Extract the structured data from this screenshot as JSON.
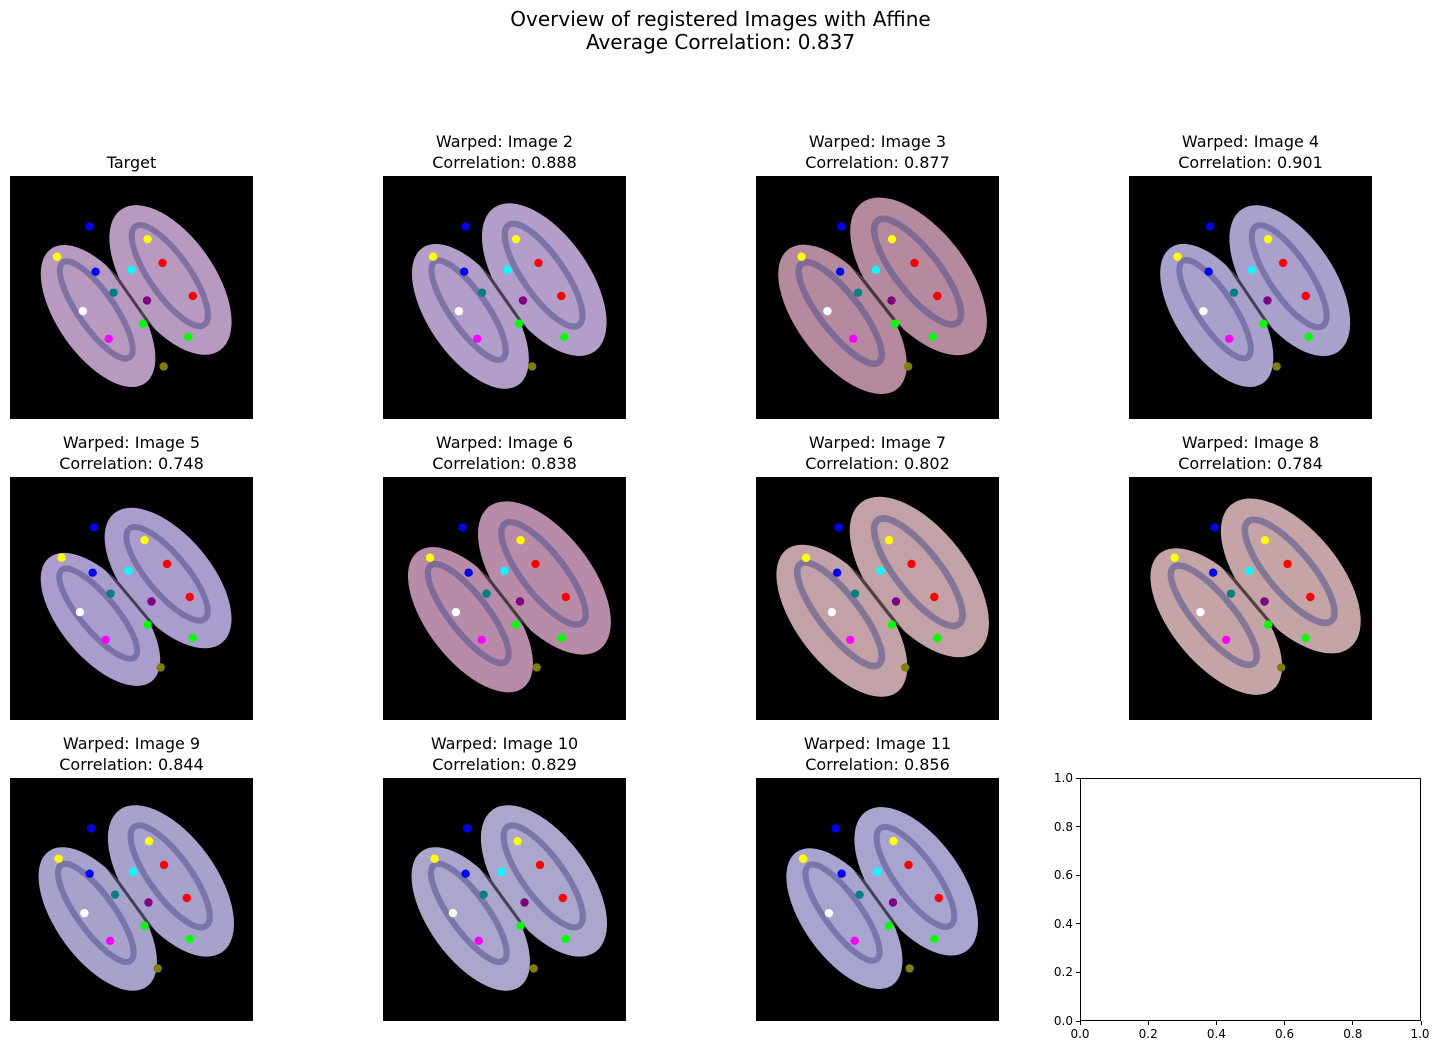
{
  "figure": {
    "title_line1": "Overview of registered Images with Affine",
    "title_line2": "Average Correlation: 0.837"
  },
  "chart_data": {
    "type": "image-grid",
    "title": "Overview of registered Images with Affine",
    "subtitle": "Average Correlation: 0.837",
    "average_correlation": 0.837,
    "grid": {
      "rows": 3,
      "cols": 4
    },
    "panels": [
      {
        "label": "Target",
        "correlation_label": "",
        "tissue_color": "#b89ac0",
        "rotation": -35,
        "scale": 1.0
      },
      {
        "label": "Warped: Image 2",
        "correlation_label": "Correlation: 0.888",
        "correlation": 0.888,
        "tissue_color": "#b29ec8",
        "rotation": -35,
        "scale": 1.02
      },
      {
        "label": "Warped: Image 3",
        "correlation_label": "Correlation: 0.877",
        "correlation": 0.877,
        "tissue_color": "#b58a9e",
        "rotation": -38,
        "scale": 1.08
      },
      {
        "label": "Warped: Image 4",
        "correlation_label": "Correlation: 0.901",
        "correlation": 0.901,
        "tissue_color": "#aaa0cc",
        "rotation": -34,
        "scale": 1.0
      },
      {
        "label": "Warped: Image 5",
        "correlation_label": "Correlation: 0.748",
        "correlation": 0.748,
        "tissue_color": "#aa9ccc",
        "rotation": -40,
        "scale": 0.98
      },
      {
        "label": "Warped: Image 6",
        "correlation_label": "Correlation: 0.838",
        "correlation": 0.838,
        "tissue_color": "#b88ca8",
        "rotation": -38,
        "scale": 1.05
      },
      {
        "label": "Warped: Image 7",
        "correlation_label": "Correlation: 0.802",
        "correlation": 0.802,
        "tissue_color": "#c2a2a6",
        "rotation": -38,
        "scale": 1.1
      },
      {
        "label": "Warped: Image 8",
        "correlation_label": "Correlation: 0.784",
        "correlation": 0.784,
        "tissue_color": "#c4a4a6",
        "rotation": -40,
        "scale": 1.08
      },
      {
        "label": "Warped: Image 9",
        "correlation_label": "Correlation: 0.844",
        "correlation": 0.844,
        "tissue_color": "#a6a2cc",
        "rotation": -36,
        "scale": 1.02
      },
      {
        "label": "Warped: Image 10",
        "correlation_label": "Correlation: 0.829",
        "correlation": 0.829,
        "tissue_color": "#aaa6cc",
        "rotation": -36,
        "scale": 1.02
      },
      {
        "label": "Warped: Image 11",
        "correlation_label": "Correlation: 0.856",
        "correlation": 0.856,
        "tissue_color": "#a8a4d0",
        "rotation": -36,
        "scale": 1.0
      }
    ],
    "landmark_colors": [
      "#0000ff",
      "#ffff00",
      "#ffff00",
      "#0000ff",
      "#00ffff",
      "#ff0000",
      "#008080",
      "#800080",
      "#ff0000",
      "#ffffff",
      "#00ff00",
      "#ff00ff",
      "#00ff00",
      "#808000"
    ],
    "empty_axes": {
      "xlim": [
        0.0,
        1.0
      ],
      "ylim": [
        0.0,
        1.0
      ],
      "xticks": [
        "0.0",
        "0.2",
        "0.4",
        "0.6",
        "0.8",
        "1.0"
      ],
      "yticks": [
        "0.0",
        "0.2",
        "0.4",
        "0.6",
        "0.8",
        "1.0"
      ]
    }
  }
}
